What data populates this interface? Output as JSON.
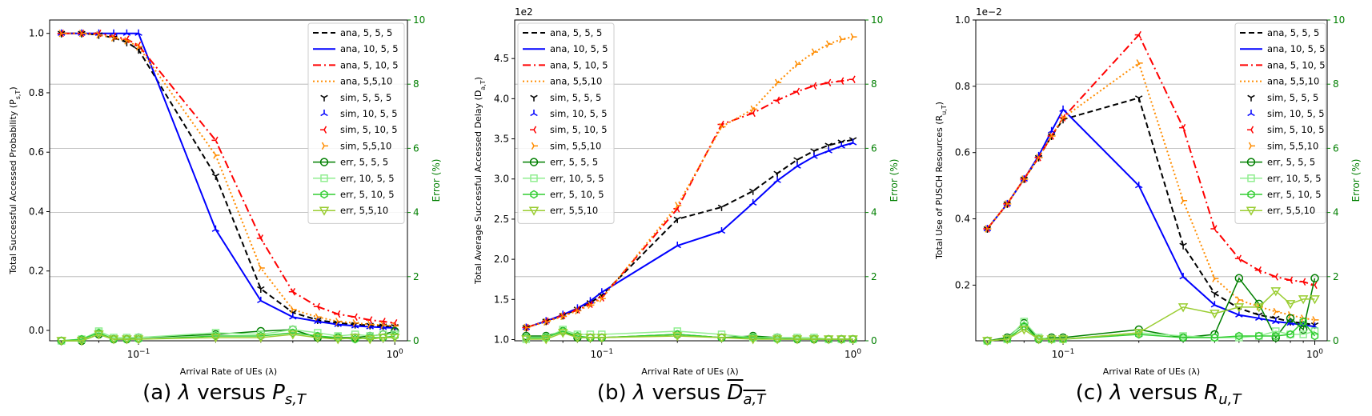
{
  "figure": {
    "captions": [
      {
        "prefix": "(a) ",
        "lambda": "λ",
        "versus": " versus ",
        "sym": "P",
        "sub": "s,T",
        "overline": false
      },
      {
        "prefix": "(b) ",
        "lambda": "λ",
        "versus": " versus ",
        "sym": "D",
        "sub": "a,T",
        "overline": true
      },
      {
        "prefix": "(c) ",
        "lambda": "λ",
        "versus": " versus ",
        "sym": "R",
        "sub": "u,T",
        "overline": false
      }
    ]
  },
  "chart_data": [
    {
      "type": "line",
      "xlabel": "Arrival Rate of UEs (λ)",
      "ylabel": "Total Successful Accessed Probability (P_{s,T})",
      "y2label": "Error (%)",
      "xscale": "log",
      "xlim": [
        0.045,
        1.12
      ],
      "ylim": [
        -0.035,
        1.045
      ],
      "y2lim": [
        0,
        10
      ],
      "xticks": [
        "10^{-1}",
        "10^{0}"
      ],
      "yticks": [
        "0.0",
        "0.2",
        "0.4",
        "0.6",
        "0.8",
        "1.0"
      ],
      "y2ticks": [
        "0",
        "2",
        "4",
        "6",
        "8",
        "10"
      ],
      "grid": "right-axis horizontal",
      "legend_position": "upper right",
      "offset_label": "",
      "x": [
        0.05,
        0.06,
        0.07,
        0.08,
        0.09,
        0.1,
        0.2,
        0.3,
        0.4,
        0.5,
        0.6,
        0.7,
        0.8,
        0.9,
        1.0
      ],
      "series": [
        {
          "name": "ana, 5, 5, 5",
          "kind": "ana",
          "color": "#000000",
          "dash": "7,4",
          "values": [
            1.0,
            1.0,
            0.995,
            0.985,
            0.97,
            0.945,
            0.52,
            0.14,
            0.06,
            0.035,
            0.025,
            0.02,
            0.017,
            0.015,
            0.013
          ]
        },
        {
          "name": "ana, 10, 5, 5",
          "kind": "ana",
          "color": "#0000ff",
          "dash": "",
          "values": [
            1.0,
            1.0,
            1.0,
            1.0,
            1.0,
            1.0,
            0.34,
            0.1,
            0.045,
            0.03,
            0.02,
            0.015,
            0.012,
            0.01,
            0.008
          ]
        },
        {
          "name": "ana, 5, 10, 5",
          "kind": "ana",
          "color": "#ff0000",
          "dash": "10,4,2,4",
          "values": [
            1.0,
            1.0,
            1.0,
            0.99,
            0.98,
            0.96,
            0.64,
            0.31,
            0.13,
            0.08,
            0.055,
            0.045,
            0.035,
            0.03,
            0.025
          ]
        },
        {
          "name": "ana, 5,5,10",
          "kind": "ana",
          "color": "#ff8c00",
          "dash": "2,3",
          "values": [
            1.0,
            1.0,
            0.995,
            0.985,
            0.975,
            0.955,
            0.59,
            0.21,
            0.07,
            0.045,
            0.03,
            0.025,
            0.02,
            0.018,
            0.015
          ]
        },
        {
          "name": "sim, 5, 5, 5",
          "kind": "sim",
          "color": "#000000",
          "marker": "tri_down",
          "values": [
            1.0,
            1.0,
            0.995,
            0.985,
            0.97,
            0.945,
            0.52,
            0.14,
            0.06,
            0.035,
            0.025,
            0.02,
            0.017,
            0.015,
            0.013
          ]
        },
        {
          "name": "sim, 10, 5, 5",
          "kind": "sim",
          "color": "#0000ff",
          "marker": "tri_up",
          "values": [
            1.0,
            1.0,
            1.0,
            1.0,
            1.0,
            1.0,
            0.34,
            0.1,
            0.045,
            0.03,
            0.02,
            0.015,
            0.012,
            0.01,
            0.008
          ]
        },
        {
          "name": "sim, 5, 10, 5",
          "kind": "sim",
          "color": "#ff0000",
          "marker": "tri_left",
          "values": [
            1.0,
            1.0,
            1.0,
            0.99,
            0.98,
            0.96,
            0.64,
            0.31,
            0.13,
            0.08,
            0.055,
            0.045,
            0.035,
            0.03,
            0.025
          ]
        },
        {
          "name": "sim, 5,5,10",
          "kind": "sim",
          "color": "#ff8c00",
          "marker": "tri_right",
          "values": [
            1.0,
            1.0,
            0.995,
            0.985,
            0.975,
            0.955,
            0.59,
            0.21,
            0.07,
            0.045,
            0.03,
            0.025,
            0.02,
            0.018,
            0.015
          ]
        },
        {
          "name": "err, 5, 5, 5",
          "kind": "err",
          "color": "#007f00",
          "marker": "circle",
          "values": [
            0.0,
            0.0,
            0.2,
            0.05,
            0.05,
            0.1,
            0.2,
            0.3,
            0.35,
            0.1,
            0.1,
            0.1,
            0.15,
            0.2,
            0.3
          ]
        },
        {
          "name": "err, 10, 5, 5",
          "kind": "err",
          "color": "#90ee90",
          "marker": "square",
          "values": [
            0.0,
            0.05,
            0.3,
            0.1,
            0.1,
            0.1,
            0.25,
            0.2,
            0.35,
            0.25,
            0.15,
            0.2,
            0.15,
            0.2,
            0.2
          ]
        },
        {
          "name": "err, 5, 10, 5",
          "kind": "err",
          "color": "#32cd32",
          "marker": "hexagon",
          "values": [
            0.0,
            0.05,
            0.25,
            0.05,
            0.05,
            0.05,
            0.15,
            0.15,
            0.25,
            0.15,
            0.1,
            0.05,
            0.1,
            0.1,
            0.15
          ]
        },
        {
          "name": "err, 5,5,10",
          "kind": "err",
          "color": "#9acd32",
          "marker": "tri_down_filled",
          "values": [
            0.0,
            0.0,
            0.2,
            0.05,
            0.05,
            0.05,
            0.1,
            0.1,
            0.2,
            0.1,
            0.05,
            0.1,
            0.05,
            0.1,
            0.1
          ]
        }
      ]
    },
    {
      "type": "line",
      "xlabel": "Arrival Rate of UEs (λ)",
      "ylabel": "Total Average Successful Accessed Delay (D_{a,T})",
      "y2label": "Error (%)",
      "xscale": "log",
      "xlim": [
        0.045,
        1.12
      ],
      "ylim": [
        0.985,
        4.98
      ],
      "y2lim": [
        0,
        10
      ],
      "xticks": [
        "10^{-1}",
        "10^{0}"
      ],
      "yticks": [
        "1.0",
        "1.5",
        "2.0",
        "2.5",
        "3.0",
        "3.5",
        "4.0",
        "4.5"
      ],
      "y2ticks": [
        "0",
        "2",
        "4",
        "6",
        "8",
        "10"
      ],
      "grid": "right-axis horizontal",
      "legend_position": "upper left",
      "offset_label": "1e2",
      "x": [
        0.05,
        0.06,
        0.07,
        0.08,
        0.09,
        0.1,
        0.2,
        0.3,
        0.4,
        0.5,
        0.6,
        0.7,
        0.8,
        0.9,
        1.0
      ],
      "series": [
        {
          "name": "ana, 5, 5, 5",
          "kind": "ana",
          "color": "#000000",
          "dash": "7,4",
          "values": [
            1.15,
            1.23,
            1.3,
            1.38,
            1.46,
            1.55,
            2.5,
            2.65,
            2.85,
            3.07,
            3.24,
            3.35,
            3.42,
            3.46,
            3.49
          ]
        },
        {
          "name": "ana, 10, 5, 5",
          "kind": "ana",
          "color": "#0000ff",
          "dash": "",
          "values": [
            1.15,
            1.23,
            1.31,
            1.39,
            1.48,
            1.59,
            2.17,
            2.35,
            2.7,
            2.98,
            3.16,
            3.28,
            3.35,
            3.41,
            3.45
          ]
        },
        {
          "name": "ana, 5, 10, 5",
          "kind": "ana",
          "color": "#ff0000",
          "dash": "10,4,2,4",
          "values": [
            1.15,
            1.23,
            1.3,
            1.37,
            1.44,
            1.52,
            2.63,
            3.68,
            3.82,
            3.98,
            4.09,
            4.16,
            4.2,
            4.22,
            4.24
          ]
        },
        {
          "name": "ana, 5,5,10",
          "kind": "ana",
          "color": "#ff8c00",
          "dash": "2,3",
          "values": [
            1.15,
            1.22,
            1.29,
            1.36,
            1.43,
            1.51,
            2.67,
            3.65,
            3.87,
            4.2,
            4.43,
            4.58,
            4.68,
            4.74,
            4.77
          ]
        },
        {
          "name": "sim, 5, 5, 5",
          "kind": "sim",
          "color": "#000000",
          "marker": "tri_down",
          "values": [
            1.15,
            1.23,
            1.3,
            1.38,
            1.46,
            1.55,
            2.5,
            2.65,
            2.85,
            3.07,
            3.24,
            3.35,
            3.42,
            3.46,
            3.49
          ]
        },
        {
          "name": "sim, 10, 5, 5",
          "kind": "sim",
          "color": "#0000ff",
          "marker": "tri_up",
          "values": [
            1.15,
            1.23,
            1.31,
            1.39,
            1.48,
            1.59,
            2.17,
            2.35,
            2.7,
            2.98,
            3.16,
            3.28,
            3.35,
            3.41,
            3.45
          ]
        },
        {
          "name": "sim, 5, 10, 5",
          "kind": "sim",
          "color": "#ff0000",
          "marker": "tri_left",
          "values": [
            1.15,
            1.23,
            1.3,
            1.37,
            1.44,
            1.52,
            2.63,
            3.68,
            3.82,
            3.98,
            4.09,
            4.16,
            4.2,
            4.22,
            4.24
          ]
        },
        {
          "name": "sim, 5,5,10",
          "kind": "sim",
          "color": "#ff8c00",
          "marker": "tri_right",
          "values": [
            1.15,
            1.22,
            1.29,
            1.36,
            1.43,
            1.51,
            2.67,
            3.65,
            3.87,
            4.2,
            4.43,
            4.58,
            4.68,
            4.74,
            4.77
          ]
        },
        {
          "name": "err, 5, 5, 5",
          "kind": "err",
          "color": "#007f00",
          "marker": "circle",
          "values": [
            0.15,
            0.15,
            0.3,
            0.1,
            0.1,
            0.1,
            0.2,
            0.1,
            0.15,
            0.1,
            0.05,
            0.05,
            0.05,
            0.05,
            0.05
          ]
        },
        {
          "name": "err, 10, 5, 5",
          "kind": "err",
          "color": "#90ee90",
          "marker": "square",
          "values": [
            0.05,
            0.1,
            0.35,
            0.2,
            0.2,
            0.2,
            0.3,
            0.2,
            0.1,
            0.1,
            0.1,
            0.1,
            0.05,
            0.05,
            0.05
          ]
        },
        {
          "name": "err, 5, 10, 5",
          "kind": "err",
          "color": "#32cd32",
          "marker": "hexagon",
          "values": [
            0.1,
            0.1,
            0.3,
            0.15,
            0.1,
            0.1,
            0.2,
            0.1,
            0.1,
            0.05,
            0.05,
            0.05,
            0.05,
            0.05,
            0.05
          ]
        },
        {
          "name": "err, 5,5,10",
          "kind": "err",
          "color": "#9acd32",
          "marker": "tri_down_filled",
          "values": [
            0.05,
            0.05,
            0.25,
            0.1,
            0.1,
            0.1,
            0.15,
            0.1,
            0.05,
            0.05,
            0.05,
            0.05,
            0.05,
            0.05,
            0.05
          ]
        }
      ]
    },
    {
      "type": "line",
      "xlabel": "Arrival Rate of UEs (λ)",
      "ylabel": "Total Use of PUSCH Resources (R_{u,T})",
      "y2label": "Error (%)",
      "xscale": "log",
      "xlim": [
        0.045,
        1.12
      ],
      "ylim": [
        0.032,
        1.0
      ],
      "y2lim": [
        0,
        10
      ],
      "xticks": [
        "10^{-1}",
        "10^{0}"
      ],
      "yticks": [
        "0.2",
        "0.4",
        "0.6",
        "0.8",
        "1.0"
      ],
      "y2ticks": [
        "0",
        "2",
        "4",
        "6",
        "8",
        "10"
      ],
      "grid": "right-axis horizontal",
      "legend_position": "upper right",
      "offset_label": "1e−2",
      "x": [
        0.05,
        0.06,
        0.07,
        0.08,
        0.09,
        0.1,
        0.2,
        0.3,
        0.4,
        0.5,
        0.6,
        0.7,
        0.8,
        0.9,
        1.0
      ],
      "series": [
        {
          "name": "ana, 5, 5, 5",
          "kind": "ana",
          "color": "#000000",
          "dash": "7,4",
          "values": [
            0.37,
            0.445,
            0.52,
            0.585,
            0.65,
            0.7,
            0.765,
            0.32,
            0.175,
            0.13,
            0.11,
            0.1,
            0.09,
            0.085,
            0.08
          ]
        },
        {
          "name": "ana, 10, 5, 5",
          "kind": "ana",
          "color": "#0000ff",
          "dash": "",
          "values": [
            0.37,
            0.445,
            0.52,
            0.59,
            0.665,
            0.73,
            0.5,
            0.225,
            0.14,
            0.11,
            0.1,
            0.09,
            0.085,
            0.08,
            0.075
          ]
        },
        {
          "name": "ana, 5, 10, 5",
          "kind": "ana",
          "color": "#ff0000",
          "dash": "10,4,2,4",
          "values": [
            0.37,
            0.445,
            0.52,
            0.585,
            0.65,
            0.705,
            0.955,
            0.675,
            0.37,
            0.28,
            0.245,
            0.225,
            0.215,
            0.21,
            0.2
          ]
        },
        {
          "name": "ana, 5,5,10",
          "kind": "ana",
          "color": "#ff8c00",
          "dash": "2,3",
          "values": [
            0.37,
            0.445,
            0.52,
            0.585,
            0.65,
            0.705,
            0.87,
            0.455,
            0.22,
            0.155,
            0.135,
            0.12,
            0.11,
            0.1,
            0.095
          ]
        },
        {
          "name": "sim, 5, 5, 5",
          "kind": "sim",
          "color": "#000000",
          "marker": "tri_down",
          "values": [
            0.37,
            0.445,
            0.52,
            0.585,
            0.65,
            0.7,
            0.765,
            0.32,
            0.175,
            0.13,
            0.11,
            0.1,
            0.09,
            0.085,
            0.08
          ]
        },
        {
          "name": "sim, 10, 5, 5",
          "kind": "sim",
          "color": "#0000ff",
          "marker": "tri_up",
          "values": [
            0.37,
            0.445,
            0.52,
            0.59,
            0.665,
            0.73,
            0.5,
            0.225,
            0.14,
            0.11,
            0.1,
            0.09,
            0.085,
            0.08,
            0.075
          ]
        },
        {
          "name": "sim, 5, 10, 5",
          "kind": "sim",
          "color": "#ff0000",
          "marker": "tri_left",
          "values": [
            0.37,
            0.445,
            0.52,
            0.585,
            0.65,
            0.705,
            0.955,
            0.675,
            0.37,
            0.28,
            0.245,
            0.225,
            0.215,
            0.21,
            0.2
          ]
        },
        {
          "name": "sim, 5,5,10",
          "kind": "sim",
          "color": "#ff8c00",
          "marker": "tri_right",
          "values": [
            0.37,
            0.445,
            0.52,
            0.585,
            0.65,
            0.705,
            0.87,
            0.455,
            0.22,
            0.155,
            0.135,
            0.12,
            0.11,
            0.1,
            0.095
          ]
        },
        {
          "name": "err, 5, 5, 5",
          "kind": "err",
          "color": "#007f00",
          "marker": "circle",
          "values": [
            0.0,
            0.1,
            0.55,
            0.05,
            0.1,
            0.1,
            0.35,
            0.1,
            0.2,
            1.95,
            1.15,
            0.1,
            0.7,
            0.35,
            1.95
          ]
        },
        {
          "name": "err, 10, 5, 5",
          "kind": "err",
          "color": "#90ee90",
          "marker": "square",
          "values": [
            0.0,
            0.05,
            0.6,
            0.1,
            0.05,
            0.05,
            0.25,
            0.15,
            0.1,
            0.1,
            0.15,
            0.3,
            0.2,
            0.2,
            0.3
          ]
        },
        {
          "name": "err, 5, 10, 5",
          "kind": "err",
          "color": "#32cd32",
          "marker": "hexagon",
          "values": [
            0.0,
            0.05,
            0.45,
            0.05,
            0.05,
            0.05,
            0.2,
            0.1,
            0.1,
            0.15,
            0.15,
            0.15,
            0.2,
            0.6,
            0.15
          ]
        },
        {
          "name": "err, 5,5,10",
          "kind": "err",
          "color": "#9acd32",
          "marker": "tri_down_filled",
          "values": [
            0.0,
            0.05,
            0.35,
            0.05,
            0.05,
            0.05,
            0.25,
            1.05,
            0.85,
            1.05,
            1.05,
            1.55,
            1.15,
            1.3,
            1.3
          ]
        }
      ]
    }
  ]
}
